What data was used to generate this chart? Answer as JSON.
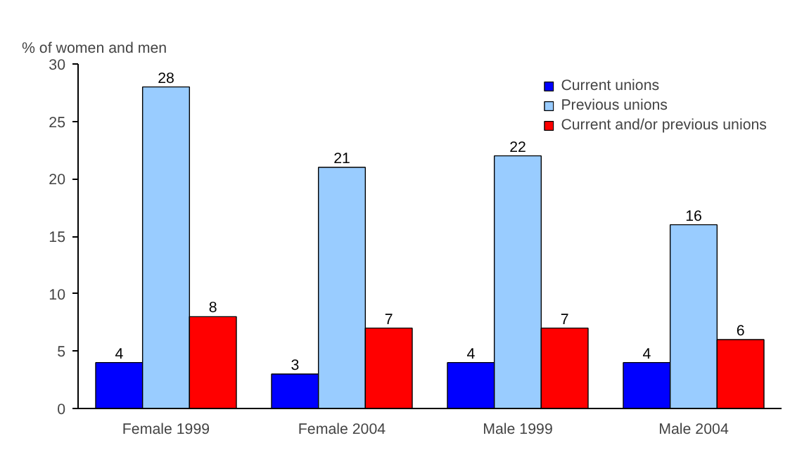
{
  "chart_data": {
    "type": "bar",
    "ylabel": "% of women and men",
    "categories": [
      "Female 1999",
      "Female 2004",
      "Male 1999",
      "Male 2004"
    ],
    "series": [
      {
        "name": "Current unions",
        "color": "#0000ff",
        "values": [
          4,
          3,
          4,
          4
        ]
      },
      {
        "name": "Previous unions",
        "color": "#99ccff",
        "values": [
          28,
          21,
          22,
          16
        ]
      },
      {
        "name": "Current and/or previous unions",
        "color": "#ff0000",
        "values": [
          8,
          7,
          7,
          6
        ]
      }
    ],
    "ylim": [
      0,
      30
    ],
    "yticks": [
      0,
      5,
      10,
      15,
      20,
      25,
      30
    ],
    "data_labels": true,
    "grid": false,
    "legend": "top right"
  }
}
